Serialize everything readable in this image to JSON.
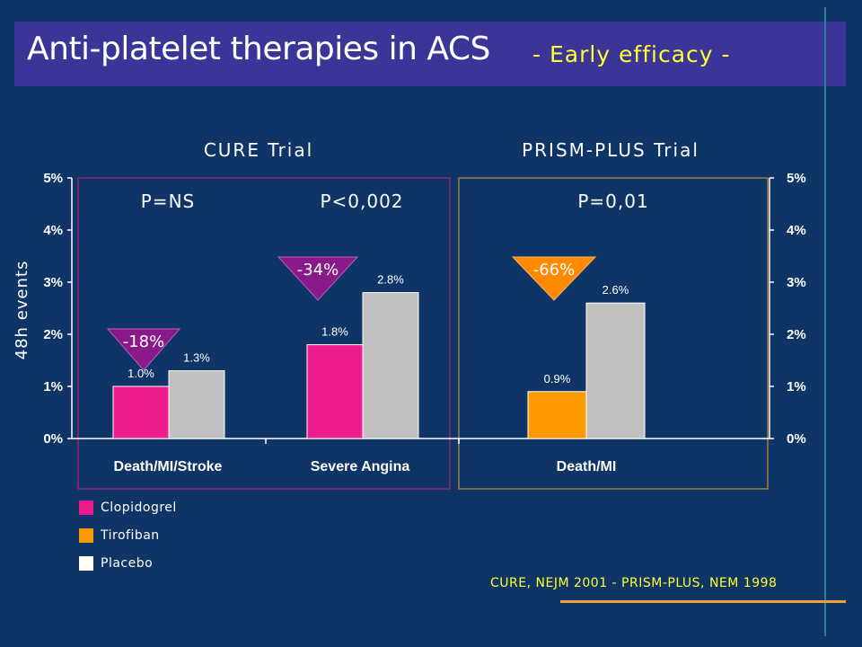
{
  "slide": {
    "title": "Anti-platelet therapies  in ACS",
    "subtitle": "- Early efficacy -",
    "source": "CURE, NEJM 2001 - PRISM-PLUS, NEM 1998"
  },
  "colors": {
    "background": "#0f3466",
    "title_bar": "#3a3596",
    "clopidogrel": "#ee1c8c",
    "tirofiban": "#ff9900",
    "placebo": "#c0c0c0",
    "cure_box": "#8a2a7a",
    "prism_box": "#a08040",
    "reduction_triangle_cure": "#8a1a8a",
    "reduction_triangle_prism": "#ff8a00"
  },
  "legend": [
    {
      "label": "Clopidogrel",
      "color": "#ee1c8c"
    },
    {
      "label": "Tirofiban",
      "color": "#ff9900"
    },
    {
      "label": "Placebo",
      "color": "#ffffff"
    }
  ],
  "chart_data": {
    "type": "bar",
    "ylabel": "48h events",
    "ylim": [
      0,
      5
    ],
    "yticks": [
      "0%",
      "1%",
      "2%",
      "3%",
      "4%",
      "5%"
    ],
    "trials": [
      {
        "name": "CURE Trial",
        "groups": [
          0,
          1
        ]
      },
      {
        "name": "PRISM-PLUS Trial",
        "groups": [
          2
        ]
      }
    ],
    "groups": [
      {
        "category": "Death/MI/Stroke",
        "p_value": "P=NS",
        "reduction": "-18%",
        "bars": [
          {
            "series": "Clopidogrel",
            "value": 1.0,
            "label": "1.0%"
          },
          {
            "series": "Placebo",
            "value": 1.3,
            "label": "1.3%"
          }
        ]
      },
      {
        "category": "Severe Angina",
        "p_value": "P<0,002",
        "reduction": "-34%",
        "bars": [
          {
            "series": "Clopidogrel",
            "value": 1.8,
            "label": "1.8%"
          },
          {
            "series": "Placebo",
            "value": 2.8,
            "label": "2.8%"
          }
        ]
      },
      {
        "category": "Death/MI",
        "p_value": "P=0,01",
        "reduction": "-66%",
        "bars": [
          {
            "series": "Tirofiban",
            "value": 0.9,
            "label": "0.9%"
          },
          {
            "series": "Placebo",
            "value": 2.6,
            "label": "2.6%"
          }
        ]
      }
    ]
  }
}
